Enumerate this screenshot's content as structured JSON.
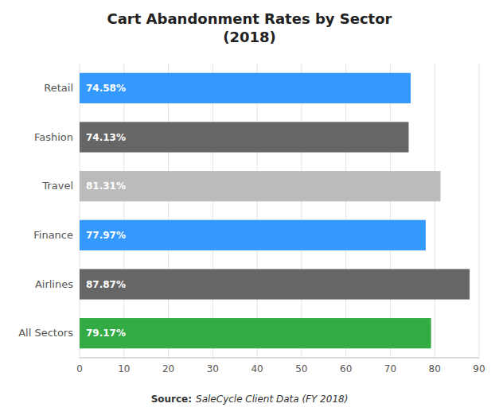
{
  "chart_data": {
    "type": "bar",
    "orientation": "horizontal",
    "title": "Cart Abandonment Rates by Sector\n(2018)",
    "categories": [
      "All Sectors",
      "Airlines",
      "Finance",
      "Travel",
      "Fashion",
      "Retail"
    ],
    "values": [
      79.17,
      87.87,
      77.97,
      81.31,
      74.13,
      74.58
    ],
    "value_labels": [
      "79.17%",
      "87.87%",
      "77.97%",
      "81.31%",
      "74.13%",
      "74.58%"
    ],
    "data_labels": true,
    "colors": [
      "#33aa44",
      "#666666",
      "#3399ff",
      "#bbbbbb",
      "#666666",
      "#3399ff"
    ],
    "xlim": [
      0,
      90
    ],
    "xticks": [
      0,
      10,
      20,
      30,
      40,
      50,
      60,
      70,
      80,
      90
    ],
    "grid": true,
    "annotations": [
      "Source:",
      "SaleCycle Client Data (FY 2018)"
    ]
  }
}
